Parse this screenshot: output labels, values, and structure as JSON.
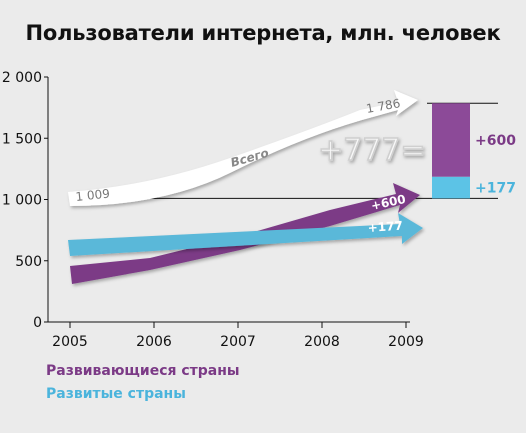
{
  "colors": {
    "developing": "#7b3a86",
    "developing_bar": "#8c4a98",
    "developed": "#5ab8d9",
    "developed_bar": "#5cc3e6",
    "total": "#ffffff",
    "bg": "#ebebeb"
  },
  "chart_data": {
    "type": "area",
    "title": "Пользователи интернета, млн. человек",
    "xlabel": "",
    "ylabel": "",
    "categories": [
      "2005",
      "2006",
      "2007",
      "2008",
      "2009"
    ],
    "ylim": [
      0,
      2000
    ],
    "yticks": [
      0,
      500,
      1000,
      1500,
      2000
    ],
    "ytick_labels": [
      "0",
      "500",
      "1 000",
      "1 500",
      "2 000"
    ],
    "grid": false,
    "series": [
      {
        "name": "Развивающиеся страны",
        "start_year": 2005,
        "end_year": 2009,
        "change_label": "+600"
      },
      {
        "name": "Развитые страны",
        "start_year": 2005,
        "end_year": 2009,
        "change_label": "+177"
      },
      {
        "name": "Всего",
        "start_value": 1009,
        "end_value": 1786,
        "start_label": "1 009",
        "end_label": "1 786"
      }
    ],
    "total_change_label": "+777=",
    "stacked_bar": {
      "segments": [
        {
          "label": "+177",
          "value": 177
        },
        {
          "label": "+600",
          "value": 600
        }
      ]
    }
  }
}
